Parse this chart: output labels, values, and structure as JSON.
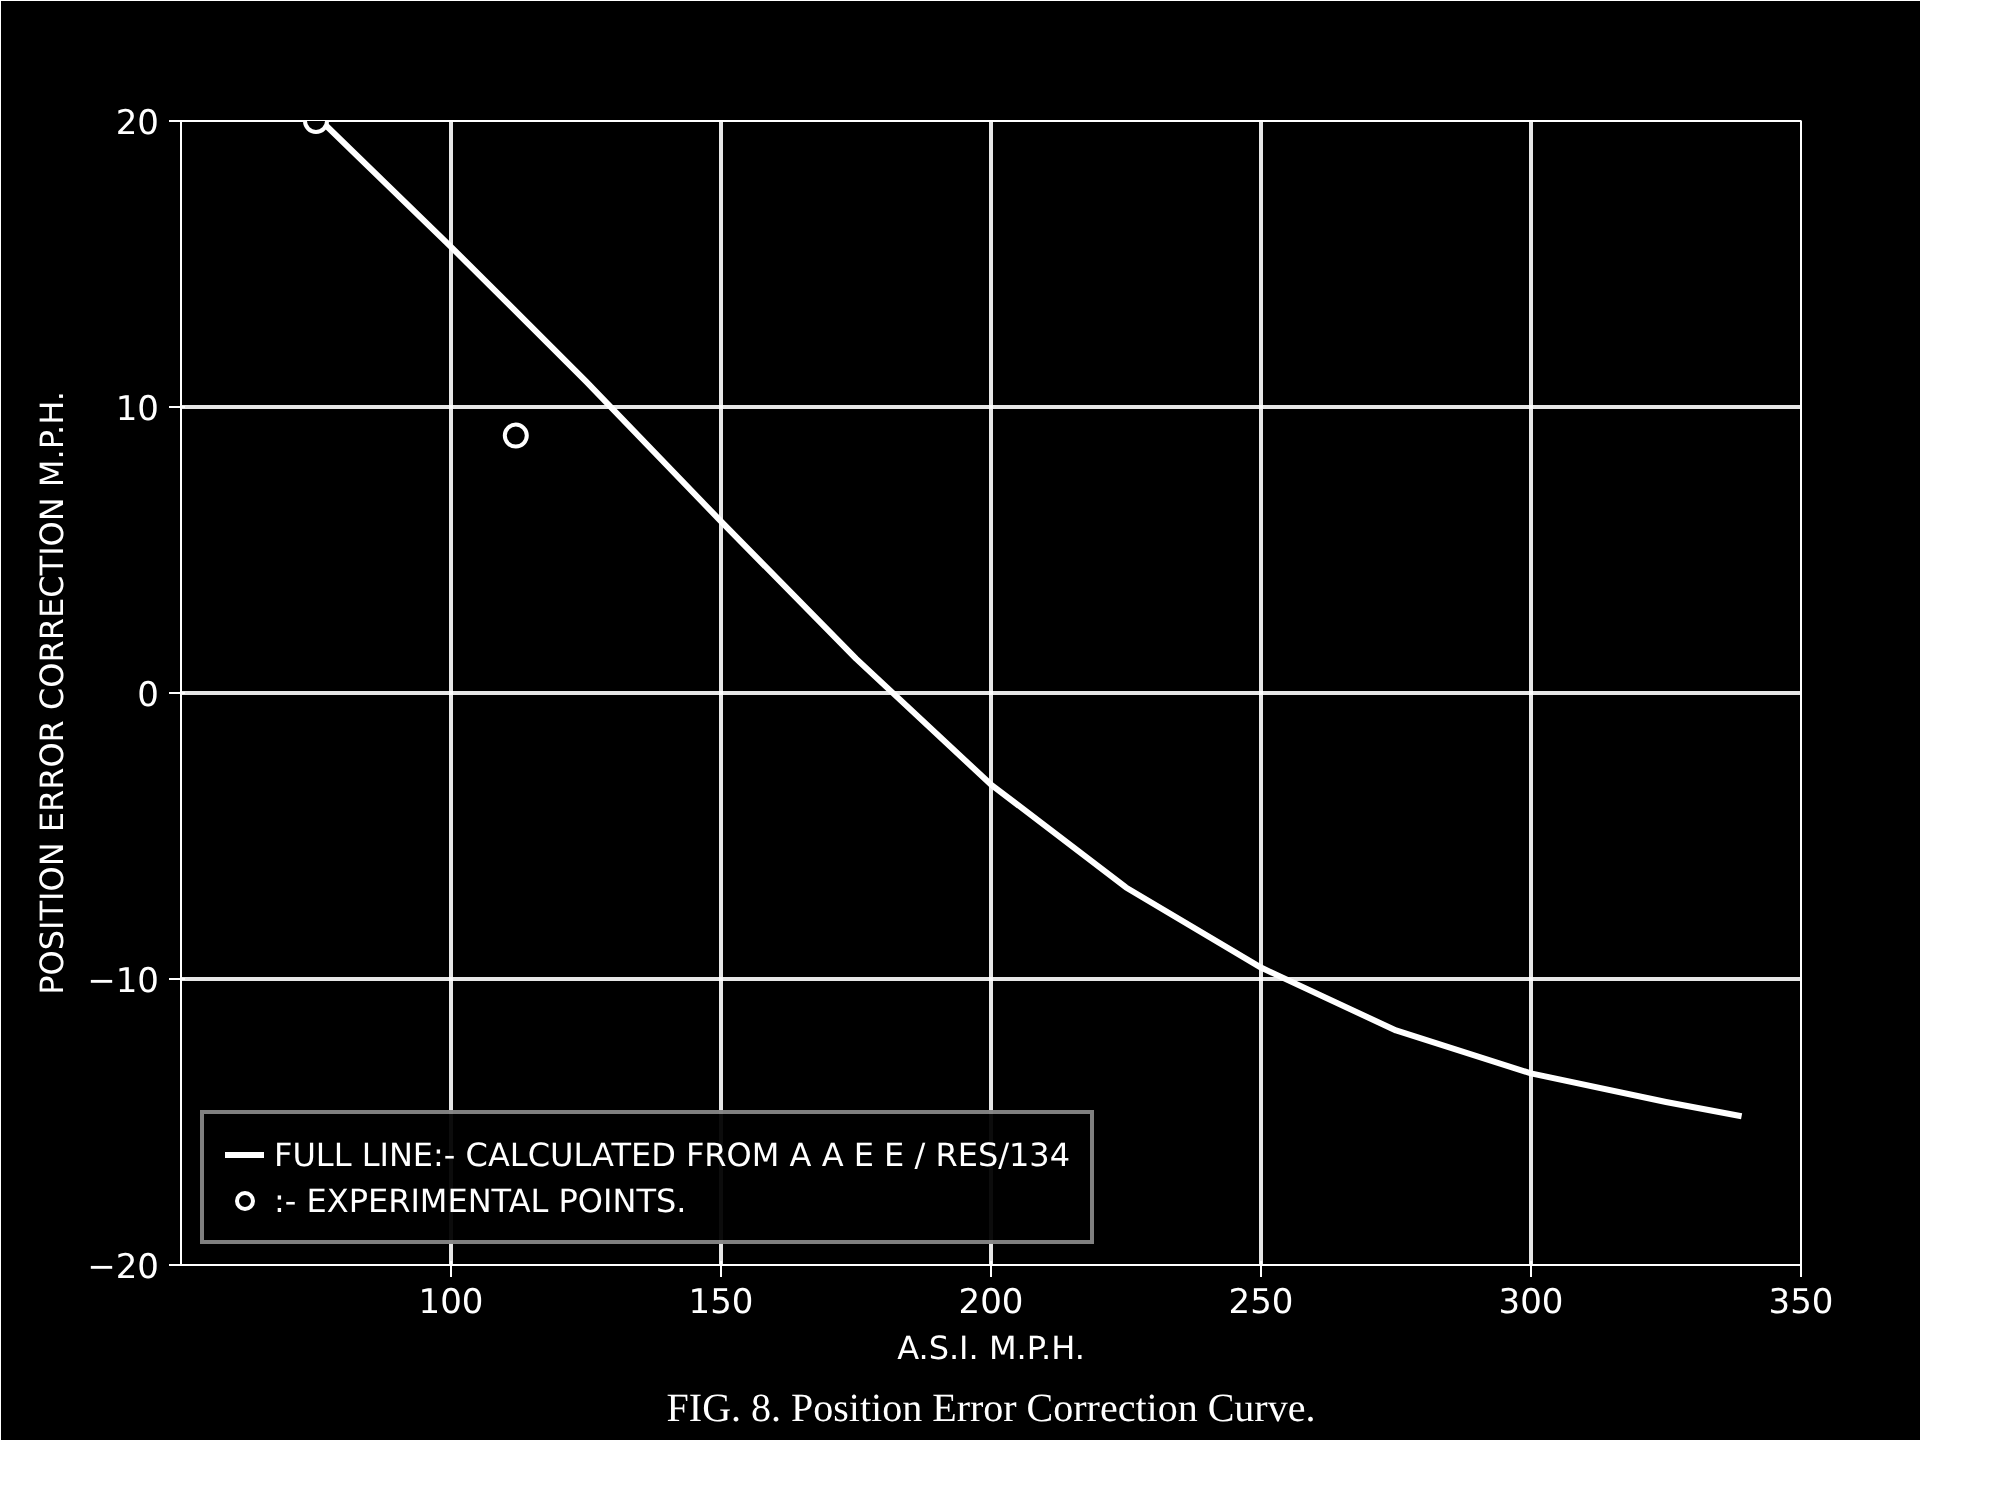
{
  "chart_data": {
    "type": "line",
    "title": "FIG. 8. Position Error Correction Curve.",
    "xlabel": "A.S.I. M.P.H.",
    "ylabel": "POSITION ERROR CORRECTION M.P.H.",
    "xlim": [
      50,
      350
    ],
    "xticks": [
      100,
      150,
      200,
      250,
      300,
      350
    ],
    "ylim": [
      -20,
      20
    ],
    "yticks": [
      -20,
      -10,
      0,
      10,
      20
    ],
    "grid": true,
    "legend": "bottom left",
    "series": [
      {
        "name": "FULL LINE:- CALCULATED FROM A A E E / RES/134",
        "color": "#ffffff",
        "x": [
          76,
          100,
          125,
          150,
          175,
          200,
          225,
          250,
          275,
          300,
          325,
          339
        ],
        "values": [
          20.0,
          15.6,
          10.9,
          6.0,
          1.2,
          -3.2,
          -6.8,
          -9.6,
          -11.8,
          -13.3,
          -14.3,
          -14.8
        ]
      },
      {
        "name": ":- EXPERIMENTAL POINTS.",
        "type": "scatter",
        "marker": "circle",
        "color": "#ffffff",
        "x": [
          75,
          112
        ],
        "values": [
          20.0,
          9.0
        ]
      }
    ]
  }
}
